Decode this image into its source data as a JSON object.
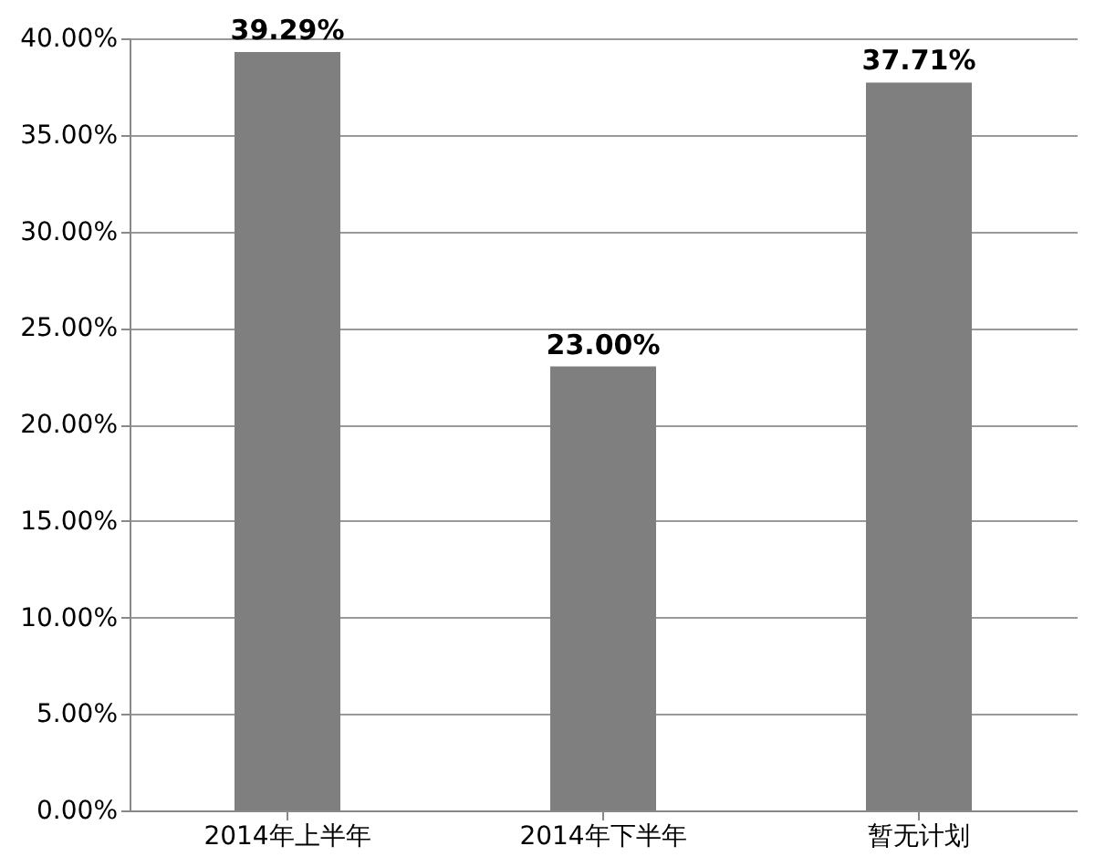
{
  "chart_data": {
    "type": "bar",
    "categories": [
      "2014年上半年",
      "2014年下半年",
      "暂无计划"
    ],
    "values": [
      39.29,
      23.0,
      37.71
    ],
    "value_labels": [
      "39.29%",
      "23.00%",
      "37.71%"
    ],
    "color": "#7f7f7f",
    "ylim": [
      0,
      40
    ],
    "yticks": [
      {
        "value": 0,
        "label": "0.00%"
      },
      {
        "value": 5,
        "label": "5.00%"
      },
      {
        "value": 10,
        "label": "10.00%"
      },
      {
        "value": 15,
        "label": "15.00%"
      },
      {
        "value": 20,
        "label": "20.00%"
      },
      {
        "value": 25,
        "label": "25.00%"
      },
      {
        "value": 30,
        "label": "30.00%"
      },
      {
        "value": 35,
        "label": "35.00%"
      },
      {
        "value": 40,
        "label": "40.00%"
      }
    ],
    "grid": "y"
  }
}
